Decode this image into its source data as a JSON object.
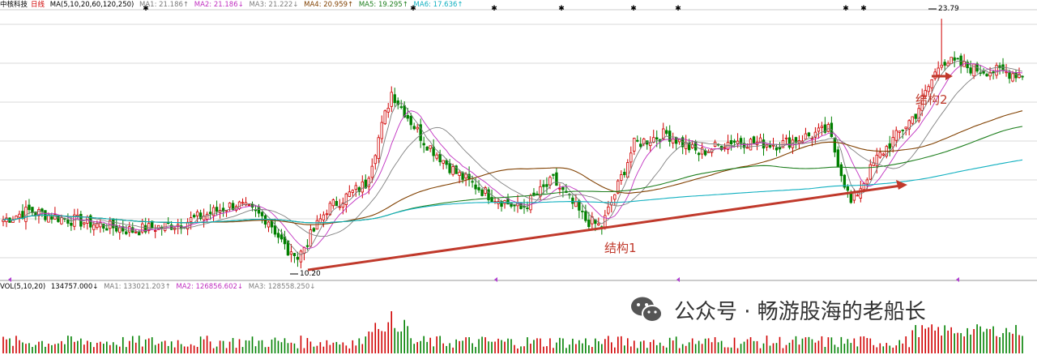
{
  "header": {
    "stock_name": "中核科技",
    "period": "日线",
    "ma_params": "MA(5,10,20,60,120,250)",
    "ma1": "MA1: 21.186↑",
    "ma2": "MA2: 21.186↓",
    "ma3": "MA3: 21.222↓",
    "ma4": "MA4: 20.959↑",
    "ma5": "MA5: 19.295↑",
    "ma6": "MA6: 17.636↑"
  },
  "volume_header": {
    "params": "VOL(5,10,20)",
    "vol": "134757.000↓",
    "ma1": "MA1: 133021.203↑",
    "ma2": "MA2: 126856.602↓",
    "ma3": "MA3: 128558.250↓"
  },
  "annotations": {
    "structure1": "结构1",
    "structure2": "结构2",
    "high_label": "23.79",
    "low_label": "10.20"
  },
  "watermark": {
    "text": "公众号 · 畅游股海的老船长"
  },
  "colors": {
    "up": "#d00000",
    "down": "#008000",
    "arrow": "#c0392b",
    "ma250": "#10b0c0",
    "ma120": "#208020"
  },
  "chart_data": {
    "type": "candlestick",
    "title": "中核科技 日线",
    "ylim": [
      9.5,
      24.2
    ],
    "visible_price_labels": {
      "high": 23.79,
      "low": 10.2
    },
    "key_points": [
      {
        "label": "low",
        "value": 10.2
      },
      {
        "label": "high",
        "value": 23.79
      }
    ],
    "trend_line_annotation": {
      "label": "结构1",
      "from_price": 10.2,
      "to_price": 15.8
    },
    "moving_averages_last": {
      "MA1": 21.186,
      "MA2": 21.186,
      "MA3": 21.222,
      "MA4": 20.959,
      "MA5": 19.295,
      "MA6": 17.636
    },
    "volume_last": {
      "VOL": 134757.0,
      "MA1": 133021.203,
      "MA2": 126856.602,
      "MA3": 128558.25
    }
  }
}
